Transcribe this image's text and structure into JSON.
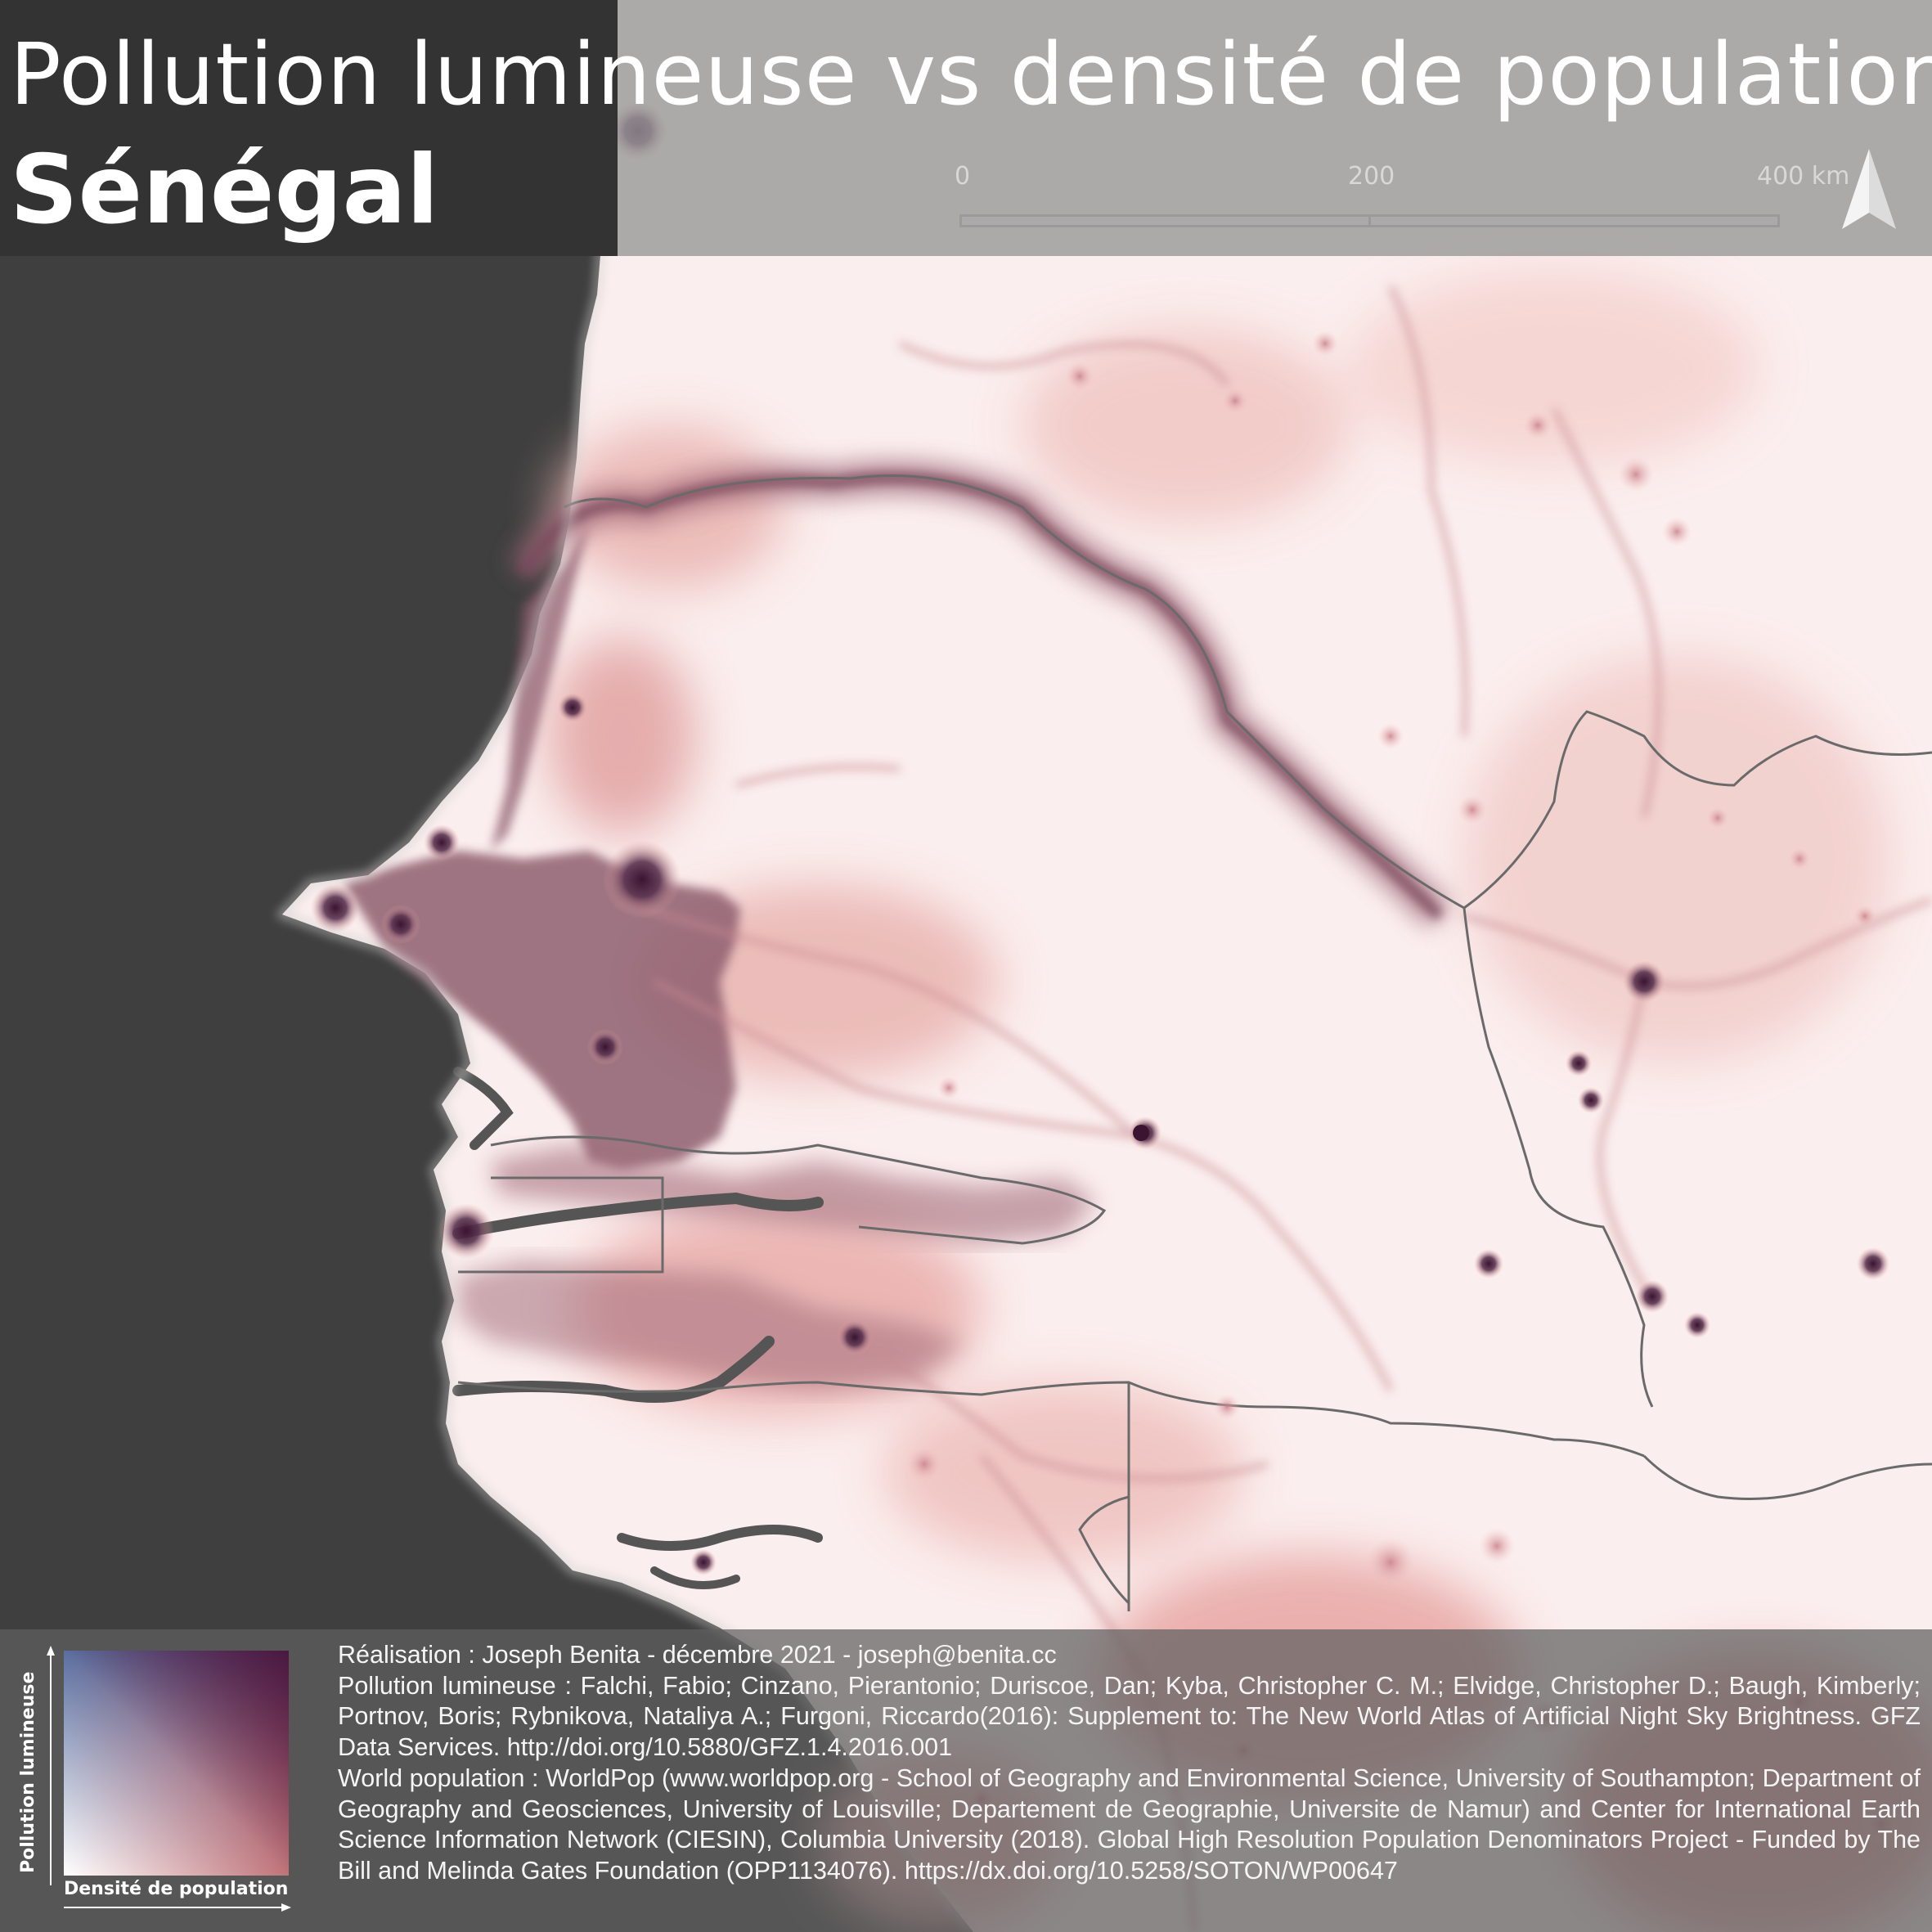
{
  "title": {
    "main": "Pollution lumineuse vs densité de population",
    "country": "Sénégal"
  },
  "scale_bar": {
    "labels": [
      "0",
      "200",
      "400 km"
    ]
  },
  "north_arrow": {
    "icon": "north-arrow-icon"
  },
  "legend": {
    "y_axis": "Pollution lumineuse",
    "x_axis": "Densité de population",
    "colors": {
      "low_low": "#ffffff",
      "high_light_low_pop": "#5a6fa0",
      "low_light_high_pop": "#8c0010",
      "high_high": "#3a1430"
    }
  },
  "credits": {
    "author": "Réalisation : Joseph Benita - décembre 2021 - joseph@benita.cc",
    "light_pollution": "Pollution lumineuse : Falchi, Fabio; Cinzano, Pierantonio; Duriscoe, Dan; Kyba, Christopher C. M.; Elvidge, Christopher D.; Baugh, Kimberly; Portnov, Boris; Rybnikova, Nataliya A.; Furgoni, Riccardo(2016): Supplement to: The New World Atlas of Artificial Night Sky Brightness. GFZ Data Services. http://doi.org/10.5880/GFZ.1.4.2016.001",
    "population": "World population : WorldPop (www.worldpop.org - School of Geography and Environmental Science, University of Southampton; Department of Geography and Geosciences, University of Louisville; Departement de Geographie, Universite de Namur) and Center for International Earth Science Information Network (CIESIN), Columbia University (2018). Global High Resolution Population Denominators Project - Funded by The Bill and Melinda Gates Foundation (OPP1134076). https://dx.doi.org/10.5258/SOTON/WP00647"
  },
  "map_colors": {
    "ocean": "#3f3f3f",
    "land": "#fbeeee",
    "dense_pink": "#e8a9a6",
    "mauve": "#8f5f70",
    "city": "#3a1430",
    "border": "#555555"
  }
}
